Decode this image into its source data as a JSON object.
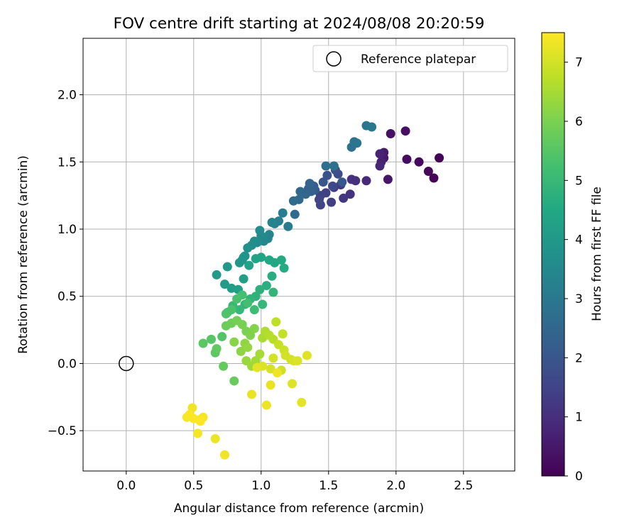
{
  "chart_data": {
    "type": "scatter",
    "title": "FOV centre drift starting at 2024/08/08 20:20:59",
    "xlabel": "Angular distance from reference (arcmin)",
    "ylabel": "Rotation from reference (arcmin)",
    "xlim": [
      -0.32,
      2.88
    ],
    "ylim": [
      -0.8,
      2.42
    ],
    "xticks": [
      0.0,
      0.5,
      1.0,
      1.5,
      2.0,
      2.5
    ],
    "xtick_labels": [
      "0.0",
      "0.5",
      "1.0",
      "1.5",
      "2.0",
      "2.5"
    ],
    "yticks": [
      -0.5,
      0.0,
      0.5,
      1.0,
      1.5,
      2.0
    ],
    "ytick_labels": [
      "−0.5",
      "0.0",
      "0.5",
      "1.0",
      "1.5",
      "2.0"
    ],
    "grid": true,
    "legend": {
      "position": "top-right",
      "entries": [
        "Reference platepar"
      ]
    },
    "reference_point": {
      "x": 0.0,
      "y": 0.0,
      "label": "Reference platepar"
    },
    "colorbar": {
      "label": "Hours from first FF file",
      "colormap": "viridis",
      "range": [
        0,
        7.5
      ],
      "ticks": [
        0,
        1,
        2,
        3,
        4,
        5,
        6,
        7
      ],
      "tick_labels": [
        "0",
        "1",
        "2",
        "3",
        "4",
        "5",
        "6",
        "7"
      ]
    },
    "points": [
      [
        2.32,
        1.53,
        0.05
      ],
      [
        2.28,
        1.38,
        0.1
      ],
      [
        2.24,
        1.43,
        0.15
      ],
      [
        2.17,
        1.5,
        0.2
      ],
      [
        2.08,
        1.52,
        0.25
      ],
      [
        2.07,
        1.73,
        0.3
      ],
      [
        1.96,
        1.71,
        0.35
      ],
      [
        1.94,
        1.37,
        0.45
      ],
      [
        1.91,
        1.53,
        0.55
      ],
      [
        1.91,
        1.57,
        0.6
      ],
      [
        1.89,
        1.5,
        0.7
      ],
      [
        1.88,
        1.47,
        0.8
      ],
      [
        1.88,
        1.56,
        0.75
      ],
      [
        1.78,
        1.36,
        0.9
      ],
      [
        1.7,
        1.36,
        1.0
      ],
      [
        1.67,
        1.37,
        1.05
      ],
      [
        1.66,
        1.26,
        1.1
      ],
      [
        1.61,
        1.23,
        1.2
      ],
      [
        1.59,
        1.33,
        1.25
      ],
      [
        1.54,
        1.31,
        1.3
      ],
      [
        1.52,
        1.2,
        1.35
      ],
      [
        1.48,
        1.27,
        1.4
      ],
      [
        1.44,
        1.25,
        1.45
      ],
      [
        1.44,
        1.18,
        1.5
      ],
      [
        1.43,
        1.22,
        1.55
      ],
      [
        1.53,
        1.32,
        1.6
      ],
      [
        1.57,
        1.41,
        1.7
      ],
      [
        1.55,
        1.44,
        1.8
      ],
      [
        1.49,
        1.4,
        1.9
      ],
      [
        1.46,
        1.35,
        2.0
      ],
      [
        1.4,
        1.29,
        2.1
      ],
      [
        1.39,
        1.32,
        2.2
      ],
      [
        1.37,
        1.28,
        2.3
      ],
      [
        1.35,
        1.3,
        2.35
      ],
      [
        1.36,
        1.34,
        2.4
      ],
      [
        1.33,
        1.26,
        2.45
      ],
      [
        1.29,
        1.28,
        2.5
      ],
      [
        1.28,
        1.22,
        2.55
      ],
      [
        1.25,
        1.11,
        2.6
      ],
      [
        1.24,
        1.21,
        2.65
      ],
      [
        1.48,
        1.47,
        2.7
      ],
      [
        1.54,
        1.47,
        2.75
      ],
      [
        1.67,
        1.61,
        2.8
      ],
      [
        1.69,
        1.65,
        2.85
      ],
      [
        1.71,
        1.64,
        2.9
      ],
      [
        1.78,
        1.77,
        2.95
      ],
      [
        1.82,
        1.76,
        3.0
      ],
      [
        1.6,
        1.35,
        2.05
      ],
      [
        1.2,
        1.02,
        3.1
      ],
      [
        1.16,
        1.12,
        3.15
      ],
      [
        1.13,
        1.06,
        3.2
      ],
      [
        1.1,
        1.04,
        3.25
      ],
      [
        1.08,
        1.05,
        3.3
      ],
      [
        1.06,
        0.96,
        3.35
      ],
      [
        1.05,
        0.93,
        3.4
      ],
      [
        1.02,
        0.91,
        3.45
      ],
      [
        1.0,
        0.95,
        3.5
      ],
      [
        0.99,
        0.99,
        3.55
      ],
      [
        0.97,
        0.9,
        3.6
      ],
      [
        0.95,
        0.91,
        3.65
      ],
      [
        0.93,
        0.88,
        3.7
      ],
      [
        0.9,
        0.86,
        3.75
      ],
      [
        0.88,
        0.8,
        3.8
      ],
      [
        0.87,
        0.79,
        3.85
      ],
      [
        0.86,
        0.77,
        3.9
      ],
      [
        0.84,
        0.75,
        3.95
      ],
      [
        0.75,
        0.72,
        4.0
      ],
      [
        0.67,
        0.66,
        4.05
      ],
      [
        0.73,
        0.59,
        4.1
      ],
      [
        0.78,
        0.56,
        4.15
      ],
      [
        0.83,
        0.55,
        4.2
      ],
      [
        0.87,
        0.63,
        4.25
      ],
      [
        0.91,
        0.73,
        4.3
      ],
      [
        0.96,
        0.78,
        4.35
      ],
      [
        1.0,
        0.79,
        4.4
      ],
      [
        1.06,
        0.77,
        4.45
      ],
      [
        1.1,
        0.75,
        4.5
      ],
      [
        1.15,
        0.77,
        4.55
      ],
      [
        1.17,
        0.71,
        4.6
      ],
      [
        1.08,
        0.65,
        4.65
      ],
      [
        1.04,
        0.58,
        4.7
      ],
      [
        0.99,
        0.55,
        4.75
      ],
      [
        0.96,
        0.5,
        4.8
      ],
      [
        0.92,
        0.48,
        4.85
      ],
      [
        0.88,
        0.44,
        4.9
      ],
      [
        0.84,
        0.4,
        4.95
      ],
      [
        0.79,
        0.43,
        5.0
      ],
      [
        0.75,
        0.38,
        5.05
      ],
      [
        1.09,
        0.53,
        4.9
      ],
      [
        1.01,
        0.44,
        4.95
      ],
      [
        0.95,
        0.4,
        5.15
      ],
      [
        0.9,
        0.45,
        5.2
      ],
      [
        0.86,
        0.51,
        5.25
      ],
      [
        0.82,
        0.48,
        5.3
      ],
      [
        0.78,
        0.4,
        5.35
      ],
      [
        0.74,
        0.37,
        5.4
      ],
      [
        0.71,
        0.2,
        5.45
      ],
      [
        0.63,
        0.18,
        5.5
      ],
      [
        0.57,
        0.15,
        5.55
      ],
      [
        0.66,
        0.08,
        5.6
      ],
      [
        0.67,
        0.11,
        5.65
      ],
      [
        0.72,
        -0.02,
        5.7
      ],
      [
        0.8,
        -0.13,
        5.75
      ],
      [
        0.74,
        0.28,
        5.8
      ],
      [
        0.78,
        0.3,
        5.85
      ],
      [
        0.82,
        0.32,
        5.9
      ],
      [
        0.86,
        0.29,
        5.95
      ],
      [
        0.89,
        0.24,
        6.0
      ],
      [
        0.92,
        0.21,
        6.05
      ],
      [
        0.95,
        0.26,
        6.1
      ],
      [
        0.8,
        0.16,
        6.15
      ],
      [
        0.85,
        0.09,
        6.2
      ],
      [
        0.88,
        0.15,
        6.25
      ],
      [
        0.9,
        0.12,
        6.3
      ],
      [
        0.89,
        0.02,
        6.35
      ],
      [
        0.93,
        -0.02,
        6.4
      ],
      [
        0.96,
        0.02,
        6.45
      ],
      [
        0.99,
        0.07,
        6.5
      ],
      [
        1.01,
        0.19,
        6.55
      ],
      [
        1.03,
        0.24,
        6.6
      ],
      [
        1.06,
        0.21,
        6.65
      ],
      [
        1.09,
        0.18,
        6.7
      ],
      [
        1.11,
        0.31,
        6.75
      ],
      [
        1.16,
        0.22,
        6.8
      ],
      [
        1.13,
        0.14,
        6.85
      ],
      [
        1.17,
        0.1,
        6.9
      ],
      [
        1.22,
        0.03,
        6.95
      ],
      [
        1.18,
        0.06,
        7.0
      ],
      [
        1.24,
        0.02,
        7.05
      ],
      [
        1.27,
        0.02,
        7.1
      ],
      [
        1.34,
        0.06,
        7.15
      ],
      [
        1.09,
        0.04,
        7.0
      ],
      [
        1.15,
        -0.05,
        6.95
      ],
      [
        1.07,
        -0.04,
        7.05
      ],
      [
        1.01,
        -0.02,
        7.1
      ],
      [
        1.23,
        -0.15,
        7.15
      ],
      [
        1.3,
        -0.29,
        7.2
      ],
      [
        1.07,
        -0.16,
        7.25
      ],
      [
        1.04,
        -0.31,
        7.3
      ],
      [
        0.93,
        -0.23,
        7.25
      ],
      [
        0.97,
        -0.03,
        7.2
      ],
      [
        1.12,
        -0.07,
        7.35
      ],
      [
        0.66,
        -0.56,
        7.3
      ],
      [
        0.73,
        -0.68,
        7.35
      ],
      [
        0.53,
        -0.52,
        7.4
      ],
      [
        0.45,
        -0.4,
        7.45
      ],
      [
        0.5,
        -0.41,
        7.5
      ],
      [
        0.54,
        -0.42,
        7.45
      ],
      [
        0.57,
        -0.4,
        7.4
      ],
      [
        0.49,
        -0.33,
        7.35
      ],
      [
        0.55,
        -0.43,
        7.5
      ],
      [
        0.47,
        -0.38,
        7.45
      ]
    ]
  }
}
